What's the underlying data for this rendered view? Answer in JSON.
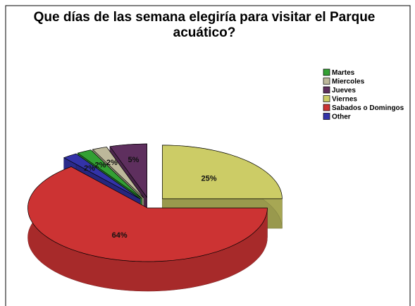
{
  "chart_data": {
    "type": "pie",
    "title": "Que días de las semana elegiría para visitar el Parque acuático?",
    "categories": [
      "Martes",
      "Miercoles",
      "Jueves",
      "Viernes",
      "Sabados o Domingos",
      "Other"
    ],
    "values": [
      2,
      2,
      5,
      25,
      64,
      2
    ],
    "value_labels": [
      "2%",
      "2%",
      "5%",
      "25%",
      "64%",
      "2%"
    ],
    "colors": [
      "#33a033",
      "#bdb89a",
      "#5e2f5e",
      "#cccc66",
      "#cc3333",
      "#3333a8"
    ],
    "legend": "right"
  }
}
